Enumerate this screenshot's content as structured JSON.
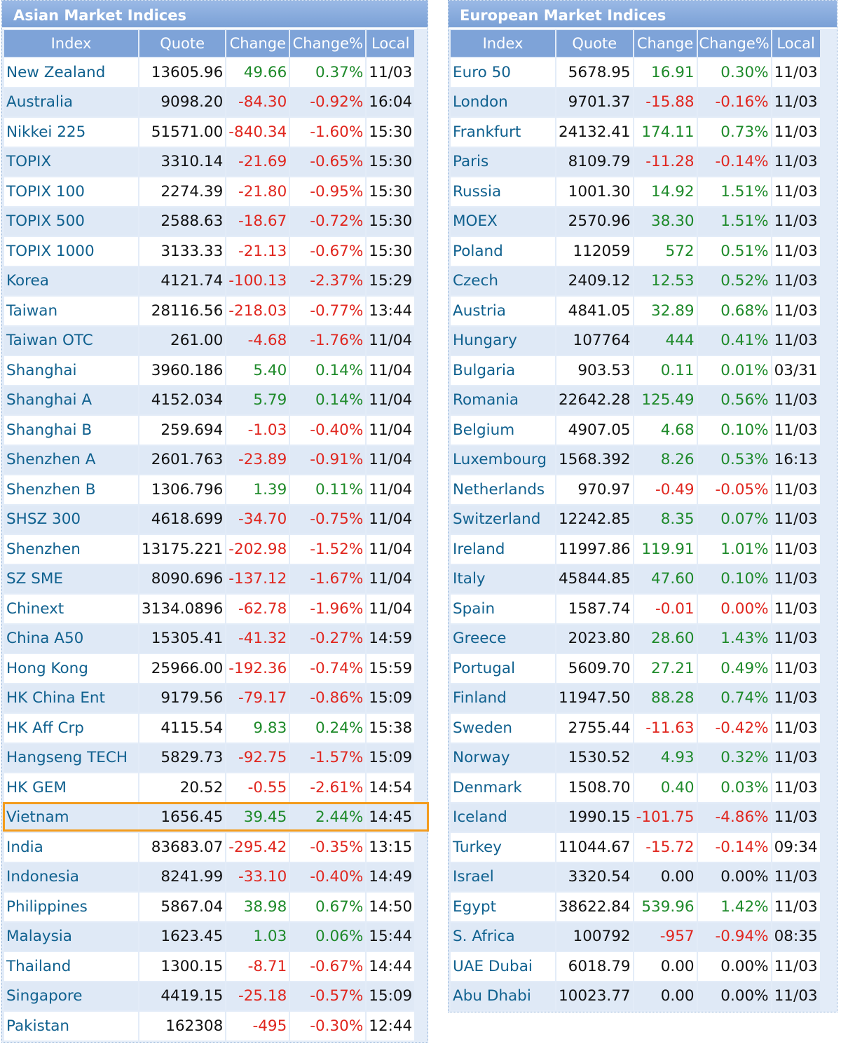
{
  "asia": {
    "title": "Asian Market Indices",
    "columns": [
      "Index",
      "Quote",
      "Change",
      "Change%",
      "Local"
    ],
    "highlight_index": "Vietnam",
    "rows": [
      [
        "New Zealand",
        "13605.96",
        "49.66",
        "0.37%",
        "11/03"
      ],
      [
        "Australia",
        "9098.20",
        "-84.30",
        "-0.92%",
        "16:04"
      ],
      [
        "Nikkei 225",
        "51571.00",
        "-840.34",
        "-1.60%",
        "15:30"
      ],
      [
        "TOPIX",
        "3310.14",
        "-21.69",
        "-0.65%",
        "15:30"
      ],
      [
        "TOPIX 100",
        "2274.39",
        "-21.80",
        "-0.95%",
        "15:30"
      ],
      [
        "TOPIX 500",
        "2588.63",
        "-18.67",
        "-0.72%",
        "15:30"
      ],
      [
        "TOPIX 1000",
        "3133.33",
        "-21.13",
        "-0.67%",
        "15:30"
      ],
      [
        "Korea",
        "4121.74",
        "-100.13",
        "-2.37%",
        "15:29"
      ],
      [
        "Taiwan",
        "28116.56",
        "-218.03",
        "-0.77%",
        "13:44"
      ],
      [
        "Taiwan OTC",
        "261.00",
        "-4.68",
        "-1.76%",
        "11/04"
      ],
      [
        "Shanghai",
        "3960.186",
        "5.40",
        "0.14%",
        "11/04"
      ],
      [
        "Shanghai A",
        "4152.034",
        "5.79",
        "0.14%",
        "11/04"
      ],
      [
        "Shanghai B",
        "259.694",
        "-1.03",
        "-0.40%",
        "11/04"
      ],
      [
        "Shenzhen A",
        "2601.763",
        "-23.89",
        "-0.91%",
        "11/04"
      ],
      [
        "Shenzhen B",
        "1306.796",
        "1.39",
        "0.11%",
        "11/04"
      ],
      [
        "SHSZ 300",
        "4618.699",
        "-34.70",
        "-0.75%",
        "11/04"
      ],
      [
        "Shenzhen",
        "13175.221",
        "-202.98",
        "-1.52%",
        "11/04"
      ],
      [
        "SZ SME",
        "8090.696",
        "-137.12",
        "-1.67%",
        "11/04"
      ],
      [
        "Chinext",
        "3134.0896",
        "-62.78",
        "-1.96%",
        "11/04"
      ],
      [
        "China A50",
        "15305.41",
        "-41.32",
        "-0.27%",
        "14:59"
      ],
      [
        "Hong Kong",
        "25966.00",
        "-192.36",
        "-0.74%",
        "15:59"
      ],
      [
        "HK China Ent",
        "9179.56",
        "-79.17",
        "-0.86%",
        "15:09"
      ],
      [
        "HK Aff Crp",
        "4115.54",
        "9.83",
        "0.24%",
        "15:38"
      ],
      [
        "Hangseng TECH",
        "5829.73",
        "-92.75",
        "-1.57%",
        "15:09"
      ],
      [
        "HK GEM",
        "20.52",
        "-0.55",
        "-2.61%",
        "14:54"
      ],
      [
        "Vietnam",
        "1656.45",
        "39.45",
        "2.44%",
        "14:45"
      ],
      [
        "India",
        "83683.07",
        "-295.42",
        "-0.35%",
        "13:15"
      ],
      [
        "Indonesia",
        "8241.99",
        "-33.10",
        "-0.40%",
        "14:49"
      ],
      [
        "Philippines",
        "5867.04",
        "38.98",
        "0.67%",
        "14:50"
      ],
      [
        "Malaysia",
        "1623.45",
        "1.03",
        "0.06%",
        "15:44"
      ],
      [
        "Thailand",
        "1300.15",
        "-8.71",
        "-0.67%",
        "14:44"
      ],
      [
        "Singapore",
        "4419.15",
        "-25.18",
        "-0.57%",
        "15:09"
      ],
      [
        "Pakistan",
        "162308",
        "-495",
        "-0.30%",
        "12:44"
      ]
    ]
  },
  "europe": {
    "title": "European Market Indices",
    "columns": [
      "Index",
      "Quote",
      "Change",
      "Change%",
      "Local"
    ],
    "rows": [
      [
        "Euro 50",
        "5678.95",
        "16.91",
        "0.30%",
        "11/03"
      ],
      [
        "London",
        "9701.37",
        "-15.88",
        "-0.16%",
        "11/03"
      ],
      [
        "Frankfurt",
        "24132.41",
        "174.11",
        "0.73%",
        "11/03"
      ],
      [
        "Paris",
        "8109.79",
        "-11.28",
        "-0.14%",
        "11/03"
      ],
      [
        "Russia",
        "1001.30",
        "14.92",
        "1.51%",
        "11/03"
      ],
      [
        "MOEX",
        "2570.96",
        "38.30",
        "1.51%",
        "11/03"
      ],
      [
        "Poland",
        "112059",
        "572",
        "0.51%",
        "11/03"
      ],
      [
        "Czech",
        "2409.12",
        "12.53",
        "0.52%",
        "11/03"
      ],
      [
        "Austria",
        "4841.05",
        "32.89",
        "0.68%",
        "11/03"
      ],
      [
        "Hungary",
        "107764",
        "444",
        "0.41%",
        "11/03"
      ],
      [
        "Bulgaria",
        "903.53",
        "0.11",
        "0.01%",
        "03/31"
      ],
      [
        "Romania",
        "22642.28",
        "125.49",
        "0.56%",
        "11/03"
      ],
      [
        "Belgium",
        "4907.05",
        "4.68",
        "0.10%",
        "11/03"
      ],
      [
        "Luxembourg",
        "1568.392",
        "8.26",
        "0.53%",
        "16:13"
      ],
      [
        "Netherlands",
        "970.97",
        "-0.49",
        "-0.05%",
        "11/03"
      ],
      [
        "Switzerland",
        "12242.85",
        "8.35",
        "0.07%",
        "11/03"
      ],
      [
        "Ireland",
        "11997.86",
        "119.91",
        "1.01%",
        "11/03"
      ],
      [
        "Italy",
        "45844.85",
        "47.60",
        "0.10%",
        "11/03"
      ],
      [
        "Spain",
        "1587.74",
        "-0.01",
        "0.00%",
        "11/03"
      ],
      [
        "Greece",
        "2023.80",
        "28.60",
        "1.43%",
        "11/03"
      ],
      [
        "Portugal",
        "5609.70",
        "27.21",
        "0.49%",
        "11/03"
      ],
      [
        "Finland",
        "11947.50",
        "88.28",
        "0.74%",
        "11/03"
      ],
      [
        "Sweden",
        "2755.44",
        "-11.63",
        "-0.42%",
        "11/03"
      ],
      [
        "Norway",
        "1530.52",
        "4.93",
        "0.32%",
        "11/03"
      ],
      [
        "Denmark",
        "1508.70",
        "0.40",
        "0.03%",
        "11/03"
      ],
      [
        "Iceland",
        "1990.15",
        "-101.75",
        "-4.86%",
        "11/03"
      ],
      [
        "Turkey",
        "11044.67",
        "-15.72",
        "-0.14%",
        "09:34"
      ],
      [
        "Israel",
        "3320.54",
        "0.00",
        "0.00%",
        "11/03"
      ],
      [
        "Egypt",
        "38622.84",
        "539.96",
        "1.42%",
        "11/03"
      ],
      [
        "S. Africa",
        "100792",
        "-957",
        "-0.94%",
        "08:35"
      ],
      [
        "UAE Dubai",
        "6018.79",
        "0.00",
        "0.00%",
        "11/03"
      ],
      [
        "Abu Dhabi",
        "10023.77",
        "0.00",
        "0.00%",
        "11/03"
      ]
    ]
  },
  "colors": {
    "positive": "#1e8a2a",
    "negative": "#e0261e",
    "index_link": "#10618f",
    "header": "#7ea3d8",
    "highlight_border": "#f39c1d"
  }
}
